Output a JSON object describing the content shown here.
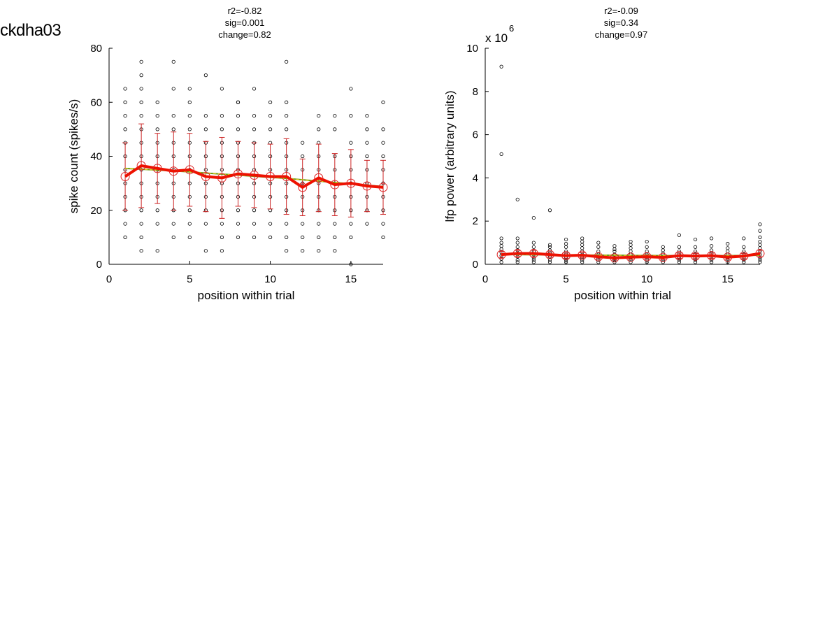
{
  "figure_title": "ckdha03",
  "chart_data": [
    {
      "type": "scatter",
      "stats": [
        "r2=-0.82",
        "sig=0.001",
        "change=0.82"
      ],
      "xlabel": "position within trial",
      "ylabel": "spike count (spikes/s)",
      "xlim": [
        0,
        17
      ],
      "ylim": [
        0,
        80
      ],
      "xticks": [
        "0",
        "5",
        "10",
        "15"
      ],
      "yticks": [
        "0",
        "20",
        "40",
        "60",
        "80"
      ],
      "scale_note": "",
      "points": {
        "x": [
          1,
          1,
          1,
          1,
          1,
          1,
          1,
          1,
          1,
          1,
          1,
          1,
          2,
          2,
          2,
          2,
          2,
          2,
          2,
          2,
          2,
          2,
          2,
          2,
          2,
          2,
          2,
          3,
          3,
          3,
          3,
          3,
          3,
          3,
          3,
          3,
          3,
          3,
          4,
          4,
          4,
          4,
          4,
          4,
          4,
          4,
          4,
          4,
          4,
          4,
          5,
          5,
          5,
          5,
          5,
          5,
          5,
          5,
          5,
          5,
          5,
          5,
          6,
          6,
          6,
          6,
          6,
          6,
          6,
          6,
          6,
          6,
          6,
          7,
          7,
          7,
          7,
          7,
          7,
          7,
          7,
          7,
          7,
          7,
          7,
          8,
          8,
          8,
          8,
          8,
          8,
          8,
          8,
          8,
          8,
          8,
          8,
          9,
          9,
          9,
          9,
          9,
          9,
          9,
          9,
          9,
          9,
          9,
          10,
          10,
          10,
          10,
          10,
          10,
          10,
          10,
          10,
          10,
          10,
          11,
          11,
          11,
          11,
          11,
          11,
          11,
          11,
          11,
          11,
          11,
          11,
          11,
          12,
          12,
          12,
          12,
          12,
          12,
          12,
          12,
          12,
          13,
          13,
          13,
          13,
          13,
          13,
          13,
          13,
          13,
          13,
          13,
          14,
          14,
          14,
          14,
          14,
          14,
          14,
          14,
          14,
          14,
          15,
          15,
          15,
          15,
          15,
          15,
          15,
          15,
          15,
          15,
          15,
          16,
          16,
          16,
          16,
          16,
          16,
          16,
          16,
          16,
          17,
          17,
          17,
          17,
          17,
          17,
          17,
          17,
          17,
          17
        ],
        "y": [
          10,
          15,
          20,
          25,
          30,
          35,
          40,
          45,
          50,
          55,
          60,
          65,
          5,
          10,
          15,
          20,
          25,
          30,
          35,
          40,
          45,
          50,
          55,
          60,
          65,
          70,
          75,
          5,
          15,
          20,
          25,
          30,
          35,
          40,
          45,
          50,
          55,
          60,
          10,
          15,
          20,
          25,
          30,
          35,
          40,
          45,
          50,
          55,
          65,
          75,
          10,
          15,
          20,
          25,
          30,
          35,
          40,
          45,
          50,
          55,
          60,
          65,
          5,
          15,
          20,
          25,
          30,
          35,
          40,
          45,
          50,
          55,
          70,
          5,
          10,
          15,
          20,
          25,
          30,
          35,
          40,
          45,
          50,
          55,
          65,
          10,
          15,
          20,
          25,
          30,
          35,
          40,
          45,
          50,
          55,
          60,
          60,
          10,
          15,
          20,
          25,
          30,
          35,
          40,
          45,
          50,
          55,
          65,
          10,
          15,
          20,
          25,
          30,
          35,
          40,
          45,
          50,
          55,
          60,
          5,
          10,
          15,
          20,
          25,
          30,
          35,
          40,
          45,
          50,
          55,
          60,
          75,
          5,
          10,
          15,
          20,
          25,
          30,
          35,
          40,
          45,
          5,
          10,
          15,
          20,
          25,
          30,
          35,
          40,
          45,
          50,
          55,
          5,
          10,
          15,
          20,
          25,
          30,
          35,
          40,
          50,
          55,
          0,
          10,
          15,
          20,
          25,
          30,
          35,
          40,
          45,
          55,
          65,
          15,
          20,
          25,
          30,
          35,
          40,
          45,
          50,
          55,
          10,
          15,
          20,
          25,
          30,
          35,
          40,
          45,
          50,
          60
        ]
      },
      "mean": [
        32.5,
        36.5,
        35.5,
        34.5,
        35.0,
        32.5,
        32.0,
        33.5,
        33.0,
        32.5,
        32.5,
        28.5,
        32.0,
        29.5,
        30.0,
        29.0,
        28.5
      ],
      "sd": [
        12.5,
        15.5,
        13.0,
        14.5,
        13.5,
        13.0,
        15.0,
        12.0,
        12.0,
        12.0,
        14.0,
        10.5,
        12.5,
        11.5,
        12.5,
        9.5,
        10.0
      ],
      "trend": [
        35.5,
        35.2,
        34.9,
        34.6,
        34.2,
        33.8,
        33.4,
        33.0,
        32.6,
        32.2,
        31.8,
        31.3,
        30.8,
        30.3,
        29.8,
        29.3,
        28.8
      ]
    },
    {
      "type": "scatter",
      "stats": [
        "r2=-0.09",
        "sig=0.34",
        "change=0.97"
      ],
      "xlabel": "position within trial",
      "ylabel": "lfp power (arbitrary units)",
      "xlim": [
        0,
        17
      ],
      "ylim": [
        0,
        10
      ],
      "xticks": [
        "0",
        "5",
        "10",
        "15"
      ],
      "yticks": [
        "0",
        "2",
        "4",
        "6",
        "8",
        "10"
      ],
      "scale_note": "x 10",
      "scale_exponent": "6",
      "points": {
        "x": [
          1,
          1,
          1,
          1,
          1,
          1,
          1,
          1,
          1,
          1,
          2,
          2,
          2,
          2,
          2,
          2,
          2,
          2,
          2,
          3,
          3,
          3,
          3,
          3,
          3,
          3,
          3,
          4,
          4,
          4,
          4,
          4,
          4,
          4,
          4,
          5,
          5,
          5,
          5,
          5,
          5,
          5,
          5,
          6,
          6,
          6,
          6,
          6,
          6,
          6,
          6,
          6,
          7,
          7,
          7,
          7,
          7,
          7,
          7,
          8,
          8,
          8,
          8,
          8,
          8,
          8,
          9,
          9,
          9,
          9,
          9,
          9,
          9,
          9,
          10,
          10,
          10,
          10,
          10,
          10,
          10,
          11,
          11,
          11,
          11,
          11,
          11,
          12,
          12,
          12,
          12,
          12,
          12,
          12,
          13,
          13,
          13,
          13,
          13,
          13,
          13,
          14,
          14,
          14,
          14,
          14,
          14,
          14,
          15,
          15,
          15,
          15,
          15,
          15,
          15,
          16,
          16,
          16,
          16,
          16,
          16,
          16,
          17,
          17,
          17,
          17,
          17,
          17,
          17,
          17,
          17,
          17,
          17
        ],
        "y": [
          0.1,
          0.25,
          0.4,
          0.55,
          0.7,
          0.85,
          1.0,
          1.2,
          5.1,
          9.15,
          0.1,
          0.2,
          0.35,
          0.5,
          0.65,
          0.8,
          1.0,
          1.2,
          3.0,
          0.1,
          0.2,
          0.3,
          0.45,
          0.6,
          0.8,
          1.0,
          2.15,
          0.1,
          0.2,
          0.35,
          0.5,
          0.65,
          0.8,
          0.9,
          2.5,
          0.1,
          0.2,
          0.3,
          0.45,
          0.6,
          0.8,
          0.95,
          1.15,
          0.1,
          0.2,
          0.3,
          0.45,
          0.6,
          0.75,
          0.9,
          1.05,
          1.2,
          0.1,
          0.2,
          0.3,
          0.45,
          0.6,
          0.8,
          1.0,
          0.1,
          0.2,
          0.3,
          0.45,
          0.6,
          0.7,
          0.85,
          0.1,
          0.2,
          0.3,
          0.45,
          0.6,
          0.75,
          0.9,
          1.05,
          0.1,
          0.2,
          0.3,
          0.45,
          0.6,
          0.8,
          1.05,
          0.1,
          0.2,
          0.35,
          0.5,
          0.65,
          0.8,
          0.1,
          0.2,
          0.3,
          0.45,
          0.6,
          0.8,
          1.35,
          0.1,
          0.2,
          0.3,
          0.45,
          0.6,
          0.8,
          1.15,
          0.1,
          0.2,
          0.35,
          0.5,
          0.65,
          0.85,
          1.2,
          0.1,
          0.2,
          0.3,
          0.45,
          0.6,
          0.75,
          0.95,
          0.1,
          0.2,
          0.3,
          0.45,
          0.6,
          0.8,
          1.2,
          0.1,
          0.2,
          0.3,
          0.45,
          0.6,
          0.75,
          0.9,
          1.05,
          1.25,
          1.55,
          1.85
        ]
      },
      "mean": [
        0.45,
        0.5,
        0.5,
        0.45,
        0.4,
        0.42,
        0.35,
        0.3,
        0.33,
        0.35,
        0.32,
        0.4,
        0.38,
        0.4,
        0.33,
        0.38,
        0.5
      ],
      "sd": [
        0.15,
        0.15,
        0.15,
        0.12,
        0.12,
        0.12,
        0.1,
        0.1,
        0.1,
        0.1,
        0.1,
        0.12,
        0.12,
        0.12,
        0.1,
        0.12,
        0.15
      ],
      "trend": [
        0.45,
        0.45,
        0.44,
        0.44,
        0.43,
        0.43,
        0.42,
        0.42,
        0.41,
        0.41,
        0.4,
        0.4,
        0.4,
        0.4,
        0.4,
        0.41,
        0.42
      ]
    }
  ]
}
